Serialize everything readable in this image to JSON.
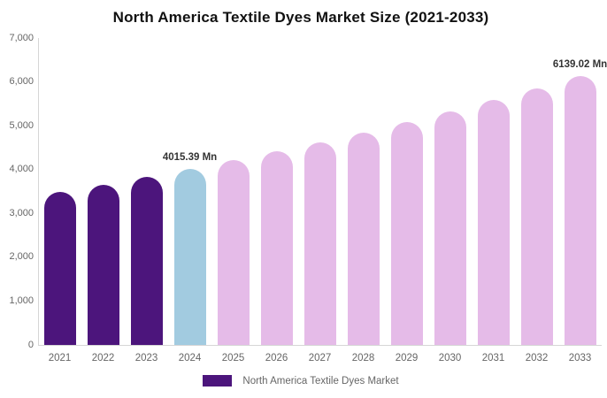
{
  "chart_data": {
    "type": "bar",
    "title": "North America Textile Dyes Market Size (2021-2033)",
    "unit": "Mn",
    "categories": [
      "2021",
      "2022",
      "2023",
      "2024",
      "2025",
      "2026",
      "2027",
      "2028",
      "2029",
      "2030",
      "2031",
      "2032",
      "2033"
    ],
    "values": [
      3485,
      3654,
      3830,
      4015.39,
      4209,
      4413,
      4626,
      4849,
      5084,
      5329,
      5587,
      5857,
      6139.02
    ],
    "bar_roles": [
      "historical",
      "historical",
      "historical",
      "highlight",
      "forecast",
      "forecast",
      "forecast",
      "forecast",
      "forecast",
      "forecast",
      "forecast",
      "forecast",
      "forecast"
    ],
    "annotations": [
      {
        "category": "2024",
        "text": "4015.39 Mn"
      },
      {
        "category": "2033",
        "text": "6139.02 Mn"
      }
    ],
    "ylim": [
      0,
      7000
    ],
    "ytick_interval": 1000,
    "ytick_labels": [
      "7,000",
      "6,000",
      "5,000",
      "4,000",
      "3,000",
      "2,000",
      "1,000",
      "0"
    ],
    "grid": false,
    "legend_position": "bottom"
  },
  "legend": {
    "label": "North America Textile Dyes Market"
  },
  "colors": {
    "historical": "#4C157C",
    "highlight": "#A2CBE0",
    "forecast": "#E5BBE8",
    "title_text": "#111111",
    "annotation_text": "#333333",
    "tick_text": "#666666",
    "axis_line": "#D6D6D6",
    "background": "#FFFFFF"
  }
}
